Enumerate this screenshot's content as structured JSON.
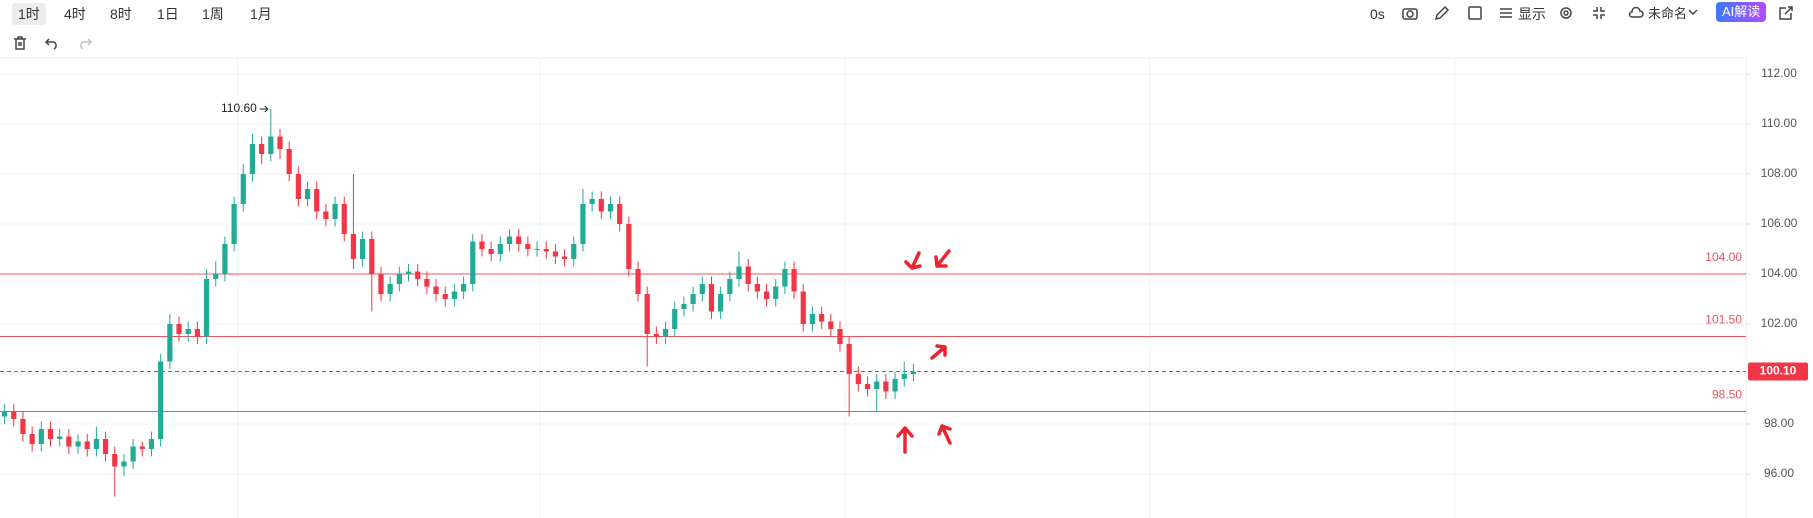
{
  "toolbar": {
    "timeframes": [
      "1时",
      "4时",
      "8时",
      "1日",
      "1周",
      "1月"
    ],
    "timer": "0s",
    "display": "显示",
    "layout_name": "未命名",
    "ai": "AI解读"
  },
  "chart_data": {
    "type": "candlestick",
    "open": [
      98.3,
      98.5,
      98.2,
      97.6,
      97.2,
      97.8,
      97.4,
      97.5,
      97.1,
      97.3,
      97.0,
      97.4,
      96.8,
      96.3,
      96.5,
      97.1,
      97.0,
      97.4,
      100.5,
      102.0,
      101.6,
      101.8,
      101.5,
      103.8,
      104.0,
      105.2,
      106.8,
      108.0,
      109.2,
      108.8,
      109.5,
      109.0,
      108.0,
      107.0,
      107.4,
      106.5,
      106.2,
      106.8,
      105.6,
      104.6,
      105.4,
      104.0,
      103.2,
      103.6,
      104.0,
      104.1,
      103.8,
      103.5,
      103.2,
      103.0,
      103.3,
      103.6,
      105.3,
      105.0,
      104.8,
      105.2,
      105.5,
      105.2,
      105.0,
      105.0,
      104.9,
      104.7,
      104.6,
      105.2,
      106.8,
      107.0,
      106.5,
      106.8,
      106.0,
      104.2,
      103.2,
      101.6,
      101.5,
      101.8,
      102.6,
      102.8,
      103.2,
      103.6,
      102.5,
      103.2,
      103.8,
      104.3,
      103.6,
      103.3,
      103.0,
      103.5,
      104.2,
      103.3,
      102.0,
      102.4,
      102.1,
      101.8,
      101.2,
      100.0,
      99.6,
      99.4,
      99.7,
      99.3,
      99.8,
      100.0
    ],
    "high": [
      98.8,
      98.8,
      98.5,
      97.9,
      98.1,
      98.1,
      97.8,
      97.8,
      97.6,
      97.6,
      97.9,
      97.7,
      97.1,
      96.8,
      97.4,
      97.3,
      97.7,
      100.8,
      102.4,
      102.3,
      102.1,
      102.1,
      104.2,
      104.5,
      105.5,
      107.1,
      108.4,
      109.6,
      109.5,
      110.6,
      109.8,
      109.3,
      108.3,
      107.7,
      107.7,
      106.8,
      107.1,
      107.1,
      108.0,
      105.7,
      105.7,
      104.3,
      103.9,
      104.3,
      104.4,
      104.4,
      104.1,
      103.8,
      103.5,
      103.6,
      103.9,
      105.6,
      105.6,
      105.3,
      105.5,
      105.8,
      105.8,
      105.5,
      105.3,
      105.3,
      105.2,
      105.0,
      105.5,
      107.4,
      107.3,
      107.3,
      107.1,
      107.1,
      106.3,
      104.5,
      103.5,
      101.9,
      102.1,
      102.9,
      103.1,
      103.5,
      103.9,
      103.9,
      103.5,
      104.1,
      104.9,
      104.6,
      103.9,
      103.6,
      103.8,
      104.5,
      104.5,
      103.6,
      102.7,
      102.7,
      102.4,
      102.1,
      101.5,
      100.3,
      99.9,
      100.0,
      100.0,
      100.1,
      100.5,
      100.4
    ],
    "low": [
      98.0,
      97.9,
      97.3,
      96.9,
      96.9,
      97.1,
      97.1,
      96.8,
      96.8,
      96.7,
      96.7,
      96.5,
      95.1,
      95.9,
      96.2,
      96.7,
      96.7,
      97.1,
      100.2,
      101.3,
      101.3,
      101.2,
      101.2,
      103.5,
      103.7,
      104.9,
      106.5,
      107.7,
      108.4,
      108.5,
      108.6,
      107.7,
      106.7,
      106.7,
      106.2,
      105.9,
      105.9,
      105.3,
      104.2,
      104.3,
      102.5,
      102.9,
      102.9,
      103.3,
      103.7,
      103.5,
      103.2,
      102.9,
      102.7,
      102.7,
      103.0,
      103.3,
      104.7,
      104.5,
      104.5,
      104.9,
      104.9,
      104.7,
      104.7,
      104.6,
      104.4,
      104.3,
      104.3,
      104.9,
      106.5,
      106.2,
      106.2,
      105.7,
      103.9,
      102.9,
      100.3,
      101.2,
      101.2,
      101.5,
      102.3,
      102.5,
      102.9,
      102.2,
      102.2,
      102.9,
      103.5,
      103.3,
      103.0,
      102.7,
      102.7,
      103.2,
      103.0,
      101.7,
      101.7,
      101.8,
      101.5,
      100.9,
      98.3,
      99.3,
      99.1,
      98.5,
      99.0,
      99.0,
      99.5,
      99.7
    ],
    "close": [
      98.5,
      98.2,
      97.6,
      97.2,
      97.8,
      97.4,
      97.5,
      97.1,
      97.3,
      97.0,
      97.4,
      96.8,
      96.3,
      96.5,
      97.1,
      97.0,
      97.4,
      100.5,
      102.0,
      101.6,
      101.8,
      101.5,
      103.8,
      104.0,
      105.2,
      106.8,
      108.0,
      109.2,
      108.8,
      109.5,
      109.0,
      108.0,
      107.0,
      107.4,
      106.5,
      106.2,
      106.8,
      105.6,
      104.6,
      105.4,
      104.0,
      103.2,
      103.6,
      104.0,
      104.1,
      103.8,
      103.5,
      103.2,
      103.0,
      103.3,
      103.6,
      105.3,
      105.0,
      104.8,
      105.2,
      105.5,
      105.2,
      105.0,
      105.0,
      104.9,
      104.7,
      104.6,
      105.2,
      106.8,
      107.0,
      106.5,
      106.8,
      106.0,
      104.2,
      103.2,
      101.6,
      101.5,
      101.8,
      102.6,
      102.8,
      103.2,
      103.6,
      102.5,
      103.2,
      103.8,
      104.3,
      103.6,
      103.3,
      103.0,
      103.5,
      104.2,
      103.3,
      102.0,
      102.4,
      102.1,
      101.8,
      101.2,
      100.0,
      99.6,
      99.4,
      99.7,
      99.3,
      99.8,
      100.0,
      100.1
    ],
    "up_color": "#22ab94",
    "down_color": "#f23645",
    "ylim": [
      94.24,
      112.64
    ],
    "yticks": [
      {
        "value": 96,
        "label": "96.00"
      },
      {
        "value": 98,
        "label": "98.00"
      },
      {
        "value": 100,
        "label": "100.00"
      },
      {
        "value": 102,
        "label": "102.00"
      },
      {
        "value": 104,
        "label": "104.00"
      },
      {
        "value": 106,
        "label": "106.00"
      },
      {
        "value": 108,
        "label": "108.00"
      },
      {
        "value": 110,
        "label": "110.00"
      },
      {
        "value": 112,
        "label": "112.00"
      }
    ],
    "grid": true,
    "levels": [
      {
        "value": 104,
        "label": "104.00"
      },
      {
        "value": 101.5,
        "label": "101.50"
      },
      {
        "value": 98.5,
        "label": "98.50"
      }
    ],
    "level_color": "#e8545f",
    "last_price": {
      "value": 100.1,
      "label": "100.10"
    },
    "max_label": {
      "value": 110.6,
      "label": "110.60",
      "index": 29
    }
  }
}
